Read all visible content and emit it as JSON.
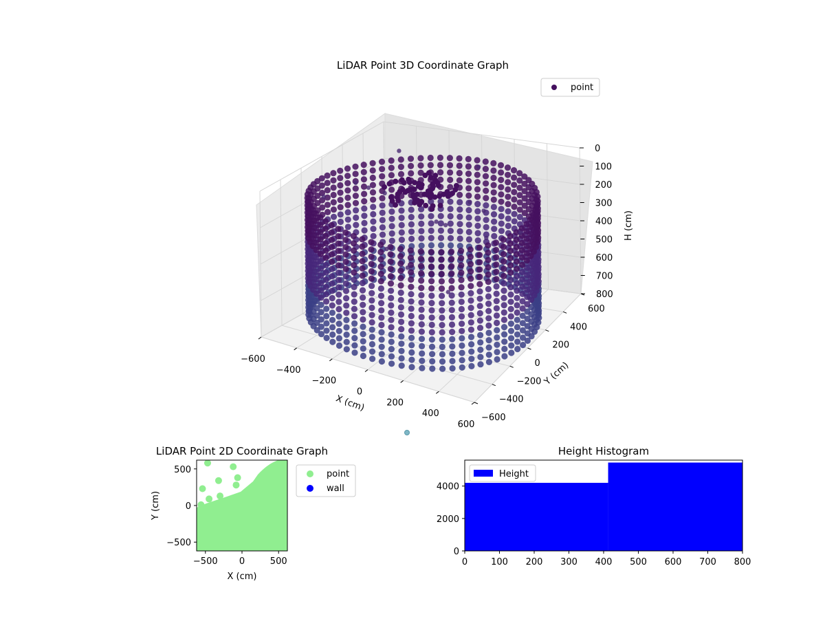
{
  "chart_data": [
    {
      "type": "scatter",
      "title": "LiDAR Point 3D Coordinate Graph",
      "xlabel": "X (cm)",
      "ylabel": "Y (cm)",
      "zlabel": "H (cm)",
      "xlim": [
        -600,
        600
      ],
      "ylim": [
        -600,
        600
      ],
      "zlim": [
        0,
        800
      ],
      "z_inverted": true,
      "x_ticks": [
        -600,
        -400,
        -200,
        0,
        200,
        400,
        600
      ],
      "y_ticks": [
        -600,
        -400,
        -200,
        0,
        200,
        400,
        600
      ],
      "z_ticks": [
        0,
        100,
        200,
        300,
        400,
        500,
        600,
        700,
        800
      ],
      "grid": true,
      "legend": {
        "placement": "top-right",
        "entries": [
          {
            "label": "point",
            "color": "#44105e"
          }
        ]
      },
      "colors": {
        "low": "#440154",
        "high": "#3e4a89"
      },
      "surface": {
        "type": "ring",
        "center": [
          0,
          0
        ],
        "radius": 600,
        "h_range": [
          0,
          800
        ]
      },
      "sample_points": [
        {
          "x": -500,
          "y": -150,
          "h": 150
        },
        {
          "x": -450,
          "y": 80,
          "h": 140
        },
        {
          "x": -350,
          "y": 200,
          "h": 220
        },
        {
          "x": -200,
          "y": 250,
          "h": 190
        },
        {
          "x": -520,
          "y": 320,
          "h": 260
        },
        {
          "x": -300,
          "y": 420,
          "h": 330
        },
        {
          "x": -150,
          "y": 380,
          "h": 410
        },
        {
          "x": 100,
          "y": 300,
          "h": 230
        },
        {
          "x": 250,
          "y": 180,
          "h": 200
        },
        {
          "x": 180,
          "y": -100,
          "h": 170
        },
        {
          "x": -80,
          "y": -250,
          "h": 300
        },
        {
          "x": 330,
          "y": 60,
          "h": 280
        },
        {
          "x": 50,
          "y": 480,
          "h": 120
        },
        {
          "x": -420,
          "y": 460,
          "h": 90
        },
        {
          "x": 400,
          "y": 300,
          "h": 350
        },
        {
          "x": 300,
          "y": -300,
          "h": 420
        },
        {
          "x": -250,
          "y": -400,
          "h": 380
        },
        {
          "x": 150,
          "y": -450,
          "h": 260
        }
      ]
    },
    {
      "type": "scatter",
      "title": "LiDAR Point 2D Coordinate Graph",
      "xlabel": "X (cm)",
      "ylabel": "Y (cm)",
      "xlim": [
        -620,
        620
      ],
      "ylim": [
        -620,
        620
      ],
      "x_ticks": [
        -500,
        0,
        500
      ],
      "y_ticks": [
        -500,
        0,
        500
      ],
      "legend": {
        "placement": "outside-right",
        "entries": [
          {
            "label": "point",
            "color": "#90ee90"
          },
          {
            "label": "wall",
            "color": "#0000ff"
          }
        ]
      },
      "filled_region": {
        "description": "dense points",
        "color": "#90ee90"
      },
      "points": [
        {
          "x": -470,
          "y": 580
        },
        {
          "x": -540,
          "y": 230
        },
        {
          "x": -320,
          "y": 340
        },
        {
          "x": -300,
          "y": 130
        },
        {
          "x": -450,
          "y": 90
        },
        {
          "x": -60,
          "y": 380
        },
        {
          "x": -120,
          "y": 530
        },
        {
          "x": -80,
          "y": 280
        },
        {
          "x": -560,
          "y": 10
        }
      ]
    },
    {
      "type": "bar",
      "title": "Height Histogram",
      "xlim": [
        0,
        800
      ],
      "ylim": [
        0,
        5600
      ],
      "x_ticks": [
        0,
        100,
        200,
        300,
        400,
        500,
        600,
        700,
        800
      ],
      "y_ticks": [
        0,
        2000,
        4000
      ],
      "legend": {
        "placement": "top-left",
        "entries": [
          {
            "label": "Height",
            "color": "#0000ff"
          }
        ]
      },
      "bins": [
        {
          "x0": 0,
          "x1": 413,
          "count": 4200
        },
        {
          "x0": 413,
          "x1": 800,
          "count": 5450
        }
      ],
      "color": "#0000ff"
    }
  ]
}
